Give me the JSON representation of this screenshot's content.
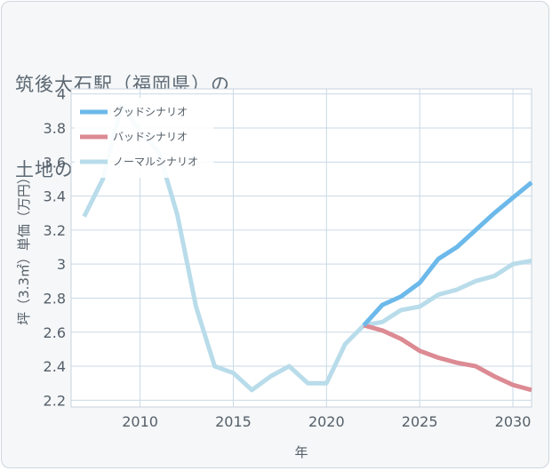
{
  "title": {
    "line1": "筑後大石駅（福岡県）の",
    "line2": "土地の価格推移"
  },
  "chart_data": {
    "type": "line",
    "xlabel": "年",
    "ylabel": "坪（3.3㎡）単価（万円）",
    "xlim": [
      2006.3,
      2031
    ],
    "ylim": [
      2.16,
      4.03
    ],
    "xticks": [
      2010,
      2015,
      2020,
      2025,
      2030
    ],
    "yticks": [
      2.2,
      2.4,
      2.6,
      2.8,
      3,
      3.2,
      3.4,
      3.6,
      3.8,
      4
    ],
    "grid": true,
    "legend_position": "top-left",
    "series": [
      {
        "name": "グッドシナリオ",
        "color": "#6cb9ea",
        "x": [
          2022,
          2023,
          2024,
          2025,
          2026,
          2027,
          2028,
          2029,
          2030,
          2031
        ],
        "y": [
          2.64,
          2.76,
          2.81,
          2.89,
          3.03,
          3.1,
          3.2,
          3.3,
          3.39,
          3.48
        ]
      },
      {
        "name": "バッドシナリオ",
        "color": "#dc8a93",
        "x": [
          2022,
          2023,
          2024,
          2025,
          2026,
          2027,
          2028,
          2029,
          2030,
          2031
        ],
        "y": [
          2.64,
          2.61,
          2.56,
          2.49,
          2.45,
          2.42,
          2.4,
          2.34,
          2.29,
          2.26
        ]
      },
      {
        "name": "ノーマルシナリオ",
        "color": "#b9dcea",
        "x": [
          2007,
          2008,
          2009,
          2010,
          2011,
          2012,
          2013,
          2014,
          2015,
          2016,
          2017,
          2018,
          2019,
          2020,
          2021,
          2022,
          2023,
          2024,
          2025,
          2026,
          2027,
          2028,
          2029,
          2030,
          2031
        ],
        "y": [
          3.28,
          3.5,
          3.93,
          3.78,
          3.66,
          3.29,
          2.75,
          2.4,
          2.36,
          2.26,
          2.34,
          2.4,
          2.3,
          2.3,
          2.53,
          2.64,
          2.66,
          2.73,
          2.75,
          2.82,
          2.85,
          2.9,
          2.93,
          3.0,
          3.02
        ]
      }
    ]
  }
}
